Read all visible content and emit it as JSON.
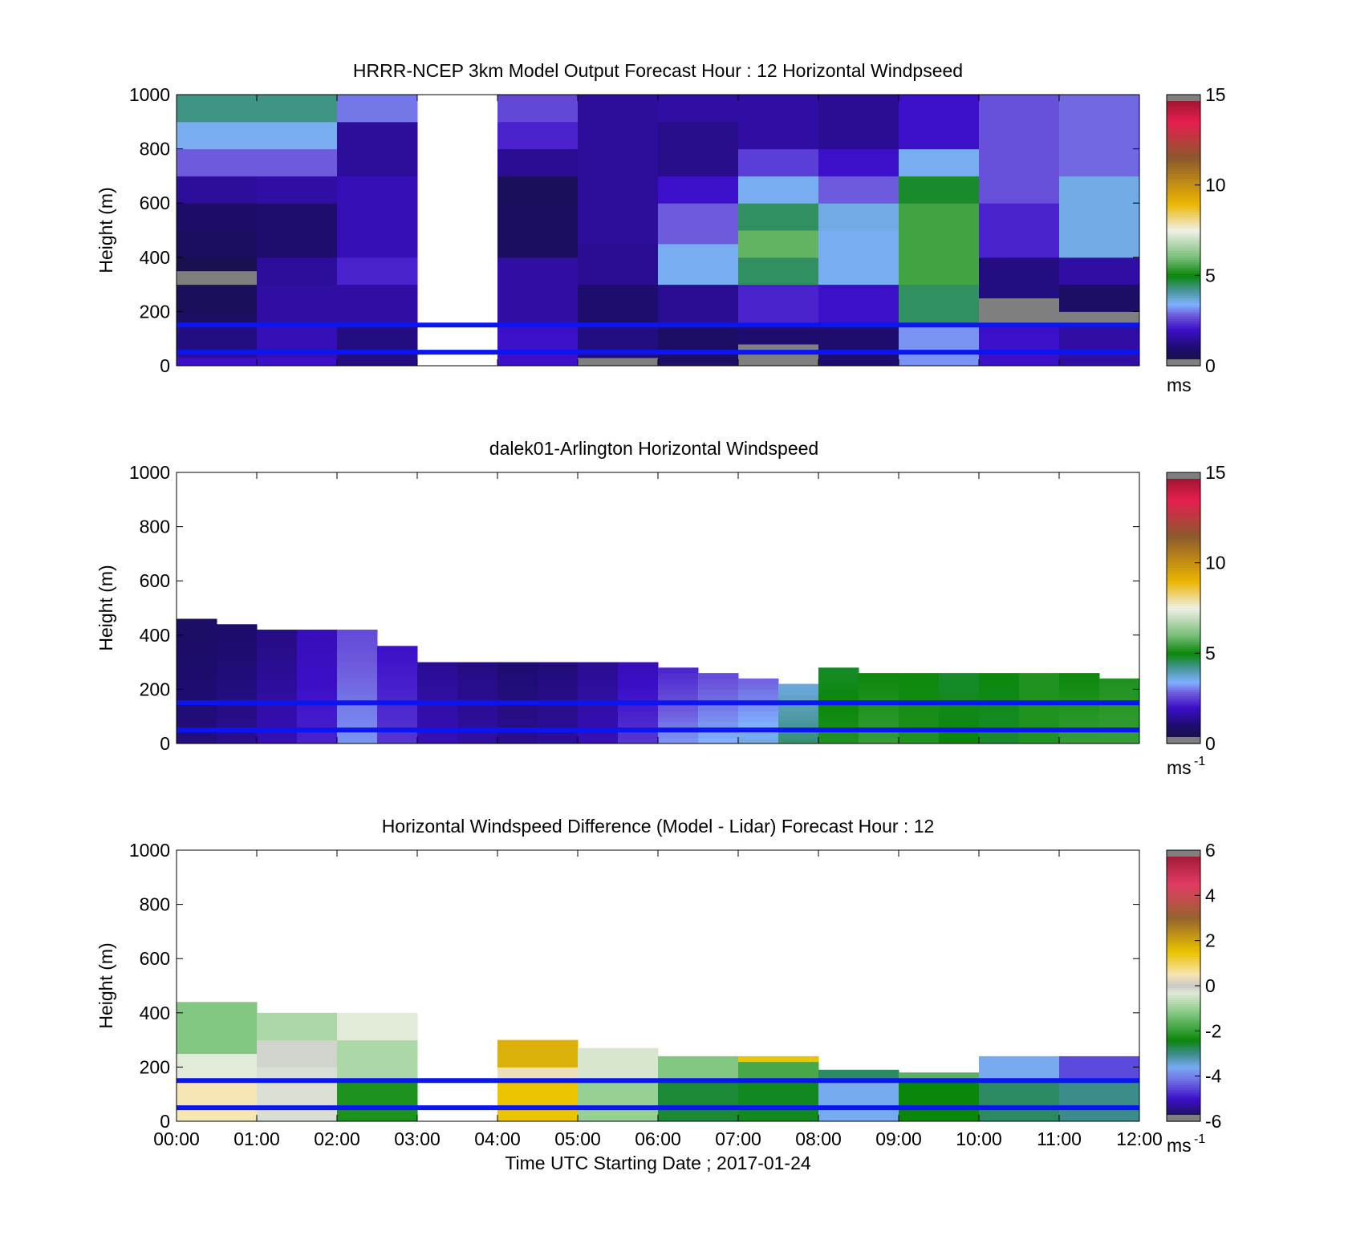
{
  "figure": {
    "xlabel": "Time UTC  Starting Date ; 2017-01-24",
    "x_ticks": [
      "00:00",
      "01:00",
      "02:00",
      "03:00",
      "04:00",
      "05:00",
      "06:00",
      "07:00",
      "08:00",
      "09:00",
      "10:00",
      "11:00",
      "12:00"
    ]
  },
  "chart_data": [
    {
      "type": "heatmap",
      "title": "HRRR-NCEP 3km Model Output   Forecast Hour : 12 Horizontal Windpseed",
      "ylabel": "Height (m)",
      "ylim": [
        0,
        1000
      ],
      "y_ticks": [
        "0",
        "200",
        "400",
        "600",
        "800",
        "1000"
      ],
      "colorbar": {
        "range": [
          0,
          15
        ],
        "ticks": [
          "0",
          "5",
          "10",
          "15"
        ],
        "unit": "ms",
        "unit_sup": ""
      },
      "reference_lines_m": [
        150,
        50
      ],
      "reference_line_color": "#0a16f2",
      "colorscale": [
        "#7f7f7f",
        "#0a0a30",
        "#1c0d6e",
        "#3a10c8",
        "#6a55d8",
        "#80b0ff",
        "#4a9a9a",
        "#0b8a0b",
        "#2a9a2a",
        "#ffffff",
        "#e8b000",
        "#8b5a2b",
        "#e22050",
        "#7f7f7f"
      ],
      "series": [
        {
          "hour": "00:00",
          "top": 1000,
          "profile": [
            [
              "0-30",
              2
            ],
            [
              "30-60",
              1.5
            ],
            [
              "60-150",
              1.2
            ],
            [
              "150-200",
              0.8
            ],
            [
              "200-300",
              0.6
            ],
            [
              "300-350",
              0
            ],
            [
              "350-400",
              0.4
            ],
            [
              "400-500",
              0.7
            ],
            [
              "500-600",
              0.9
            ],
            [
              "600-700",
              1.5
            ],
            [
              "700-800",
              2.8
            ],
            [
              "800-900",
              3.5
            ],
            [
              "900-1000",
              4.3
            ]
          ]
        },
        {
          "hour": "01:00",
          "top": 1000,
          "profile": [
            [
              "0-30",
              2
            ],
            [
              "30-150",
              1.8
            ],
            [
              "150-300",
              1.6
            ],
            [
              "300-400",
              1.5
            ],
            [
              "400-600",
              1.0
            ],
            [
              "600-700",
              1.6
            ],
            [
              "700-800",
              2.8
            ],
            [
              "800-900",
              3.5
            ],
            [
              "900-1000",
              4.3
            ]
          ]
        },
        {
          "hour": "02:00",
          "top": 1000,
          "profile": [
            [
              "0-150",
              1.2
            ],
            [
              "150-300",
              1.6
            ],
            [
              "300-400",
              2.2
            ],
            [
              "400-700",
              1.8
            ],
            [
              "700-900",
              1.5
            ],
            [
              "900-1000",
              3.0
            ]
          ]
        },
        {
          "hour": "03:00",
          "top": 0,
          "profile": []
        },
        {
          "hour": "04:00",
          "top": 1000,
          "profile": [
            [
              "0-150",
              2.0
            ],
            [
              "150-400",
              1.6
            ],
            [
              "400-600",
              0.7
            ],
            [
              "600-700",
              0.6
            ],
            [
              "700-800",
              1.4
            ],
            [
              "800-900",
              2.2
            ],
            [
              "900-1000",
              2.6
            ]
          ]
        },
        {
          "hour": "05:00",
          "top": 1000,
          "profile": [
            [
              "0-30",
              0
            ],
            [
              "30-150",
              1.2
            ],
            [
              "150-300",
              1.0
            ],
            [
              "300-450",
              1.4
            ],
            [
              "450-1000",
              1.5
            ]
          ]
        },
        {
          "hour": "06:00",
          "top": 1000,
          "profile": [
            [
              "0-150",
              0.8
            ],
            [
              "150-300",
              1.4
            ],
            [
              "300-450",
              3.5
            ],
            [
              "450-600",
              2.8
            ],
            [
              "600-700",
              2.0
            ],
            [
              "700-900",
              1.3
            ],
            [
              "900-1000",
              1.6
            ]
          ]
        },
        {
          "hour": "07:00",
          "top": 1000,
          "profile": [
            [
              "0-30",
              0
            ],
            [
              "30-80",
              0
            ],
            [
              "80-150",
              1.0
            ],
            [
              "150-300",
              2.2
            ],
            [
              "300-400",
              4.5
            ],
            [
              "400-500",
              5.8
            ],
            [
              "500-600",
              4.5
            ],
            [
              "600-700",
              3.5
            ],
            [
              "700-800",
              2.5
            ],
            [
              "800-1000",
              1.6
            ]
          ]
        },
        {
          "hour": "08:00",
          "top": 1000,
          "profile": [
            [
              "0-150",
              1.0
            ],
            [
              "150-300",
              2.0
            ],
            [
              "300-500",
              3.5
            ],
            [
              "500-600",
              3.6
            ],
            [
              "600-700",
              2.8
            ],
            [
              "700-800",
              2.0
            ],
            [
              "800-1000",
              1.4
            ]
          ]
        },
        {
          "hour": "09:00",
          "top": 1000,
          "profile": [
            [
              "0-150",
              3.2
            ],
            [
              "150-300",
              4.5
            ],
            [
              "300-600",
              5.5
            ],
            [
              "600-700",
              4.8
            ],
            [
              "700-800",
              3.5
            ],
            [
              "800-1000",
              2.0
            ]
          ]
        },
        {
          "hour": "10:00",
          "top": 1000,
          "profile": [
            [
              "0-150",
              2.0
            ],
            [
              "150-250",
              0
            ],
            [
              "250-400",
              1.2
            ],
            [
              "400-600",
              2.2
            ],
            [
              "600-1000",
              2.7
            ]
          ]
        },
        {
          "hour": "11:00",
          "top": 1000,
          "profile": [
            [
              "0-150",
              1.6
            ],
            [
              "150-200",
              0
            ],
            [
              "200-300",
              0.8
            ],
            [
              "300-400",
              1.6
            ],
            [
              "400-700",
              3.6
            ],
            [
              "700-1000",
              2.9
            ]
          ]
        }
      ]
    },
    {
      "type": "heatmap",
      "title": "dalek01-Arlington  Horizontal Windspeed",
      "ylabel": "Height (m)",
      "ylim": [
        0,
        1000
      ],
      "y_ticks": [
        "0",
        "200",
        "400",
        "600",
        "800",
        "1000"
      ],
      "colorbar": {
        "range": [
          0,
          15
        ],
        "ticks": [
          "0",
          "5",
          "10",
          "15"
        ],
        "unit": "ms",
        "unit_sup": "-1"
      },
      "reference_lines_m": [
        150,
        50
      ],
      "reference_line_color": "#0a16f2",
      "series": [
        {
          "hour": "00:00",
          "top": 450,
          "speed_low": 1.2,
          "speed_high": 0.8
        },
        {
          "hour": "00:30",
          "top": 440,
          "speed_low": 1.4,
          "speed_high": 0.9
        },
        {
          "hour": "01:00",
          "top": 420,
          "speed_low": 1.8,
          "speed_high": 1.2
        },
        {
          "hour": "01:30",
          "top": 420,
          "speed_low": 2.2,
          "speed_high": 1.8
        },
        {
          "hour": "02:00",
          "top": 420,
          "speed_low": 3.2,
          "speed_high": 2.6
        },
        {
          "hour": "02:30",
          "top": 360,
          "speed_low": 2.4,
          "speed_high": 2.0
        },
        {
          "hour": "03:00",
          "top": 300,
          "speed_low": 1.8,
          "speed_high": 1.4
        },
        {
          "hour": "03:30",
          "top": 290,
          "speed_low": 1.6,
          "speed_high": 1.2
        },
        {
          "hour": "04:00",
          "top": 290,
          "speed_low": 1.4,
          "speed_high": 1.0
        },
        {
          "hour": "04:30",
          "top": 300,
          "speed_low": 1.5,
          "speed_high": 1.1
        },
        {
          "hour": "05:00",
          "top": 290,
          "speed_low": 1.8,
          "speed_high": 1.4
        },
        {
          "hour": "05:30",
          "top": 290,
          "speed_low": 2.4,
          "speed_high": 1.8
        },
        {
          "hour": "06:00",
          "top": 280,
          "speed_low": 3.2,
          "speed_high": 2.2
        },
        {
          "hour": "06:30",
          "top": 260,
          "speed_low": 3.4,
          "speed_high": 2.6
        },
        {
          "hour": "07:00",
          "top": 240,
          "speed_low": 3.6,
          "speed_high": 2.8
        },
        {
          "hour": "07:30",
          "top": 220,
          "speed_low": 4.4,
          "speed_high": 3.6
        },
        {
          "hour": "08:00",
          "top": 280,
          "speed_low": 5.2,
          "speed_high": 4.8
        },
        {
          "hour": "08:30",
          "top": 260,
          "speed_low": 5.4,
          "speed_high": 5.0
        },
        {
          "hour": "09:00",
          "top": 260,
          "speed_low": 5.2,
          "speed_high": 5.0
        },
        {
          "hour": "09:30",
          "top": 260,
          "speed_low": 5.0,
          "speed_high": 4.8
        },
        {
          "hour": "10:00",
          "top": 260,
          "speed_low": 4.8,
          "speed_high": 5.0
        },
        {
          "hour": "10:30",
          "top": 260,
          "speed_low": 5.2,
          "speed_high": 5.2
        },
        {
          "hour": "11:00",
          "top": 260,
          "speed_low": 5.4,
          "speed_high": 5.0
        },
        {
          "hour": "11:30",
          "top": 230,
          "speed_low": 5.4,
          "speed_high": 5.2
        }
      ]
    },
    {
      "type": "heatmap",
      "title": "Horizontal Windspeed Difference (Model - Lidar) Forecast Hour : 12",
      "ylabel": "Height (m)",
      "ylim": [
        0,
        1000
      ],
      "y_ticks": [
        "0",
        "200",
        "400",
        "600",
        "800",
        "1000"
      ],
      "colorbar": {
        "range": [
          -6,
          6
        ],
        "ticks": [
          "-6",
          "-4",
          "-2",
          "0",
          "2",
          "4",
          "6"
        ],
        "unit": "ms",
        "unit_sup": "-1"
      },
      "reference_lines_m": [
        150,
        50
      ],
      "reference_line_color": "#0a16f2",
      "series": [
        {
          "hour": "00:00",
          "top": 440,
          "profile": [
            [
              "0-150",
              0.5
            ],
            [
              "150-250",
              -0.3
            ],
            [
              "250-440",
              -1.2
            ]
          ]
        },
        {
          "hour": "01:00",
          "top": 400,
          "profile": [
            [
              "0-200",
              -0.2
            ],
            [
              "200-300",
              -0.1
            ],
            [
              "300-400",
              -0.8
            ]
          ]
        },
        {
          "hour": "02:00",
          "top": 400,
          "profile": [
            [
              "0-150",
              -2.2
            ],
            [
              "150-300",
              -0.8
            ],
            [
              "300-400",
              -0.3
            ]
          ]
        },
        {
          "hour": "03:00",
          "top": 0,
          "profile": []
        },
        {
          "hour": "04:00",
          "top": 300,
          "profile": [
            [
              "0-150",
              1.5
            ],
            [
              "150-200",
              0.4
            ],
            [
              "200-300",
              1.8
            ]
          ]
        },
        {
          "hour": "05:00",
          "top": 270,
          "profile": [
            [
              "0-150",
              -1.0
            ],
            [
              "150-270",
              -0.4
            ]
          ]
        },
        {
          "hour": "06:00",
          "top": 240,
          "profile": [
            [
              "0-150",
              -2.6
            ],
            [
              "150-240",
              -1.2
            ]
          ]
        },
        {
          "hour": "07:00",
          "top": 240,
          "profile": [
            [
              "0-150",
              -2.5
            ],
            [
              "150-220",
              -1.8
            ],
            [
              "220-240",
              1.5
            ]
          ]
        },
        {
          "hour": "08:00",
          "top": 190,
          "profile": [
            [
              "0-150",
              -3.6
            ],
            [
              "150-190",
              -2.8
            ]
          ]
        },
        {
          "hour": "09:00",
          "top": 180,
          "profile": [
            [
              "0-150",
              -2.4
            ],
            [
              "150-180",
              -1.6
            ]
          ]
        },
        {
          "hour": "10:00",
          "top": 240,
          "profile": [
            [
              "0-150",
              -2.8
            ],
            [
              "150-240",
              -3.6
            ]
          ]
        },
        {
          "hour": "11:00",
          "top": 240,
          "profile": [
            [
              "0-150",
              -3.0
            ],
            [
              "150-240",
              -4.5
            ]
          ]
        }
      ]
    }
  ]
}
